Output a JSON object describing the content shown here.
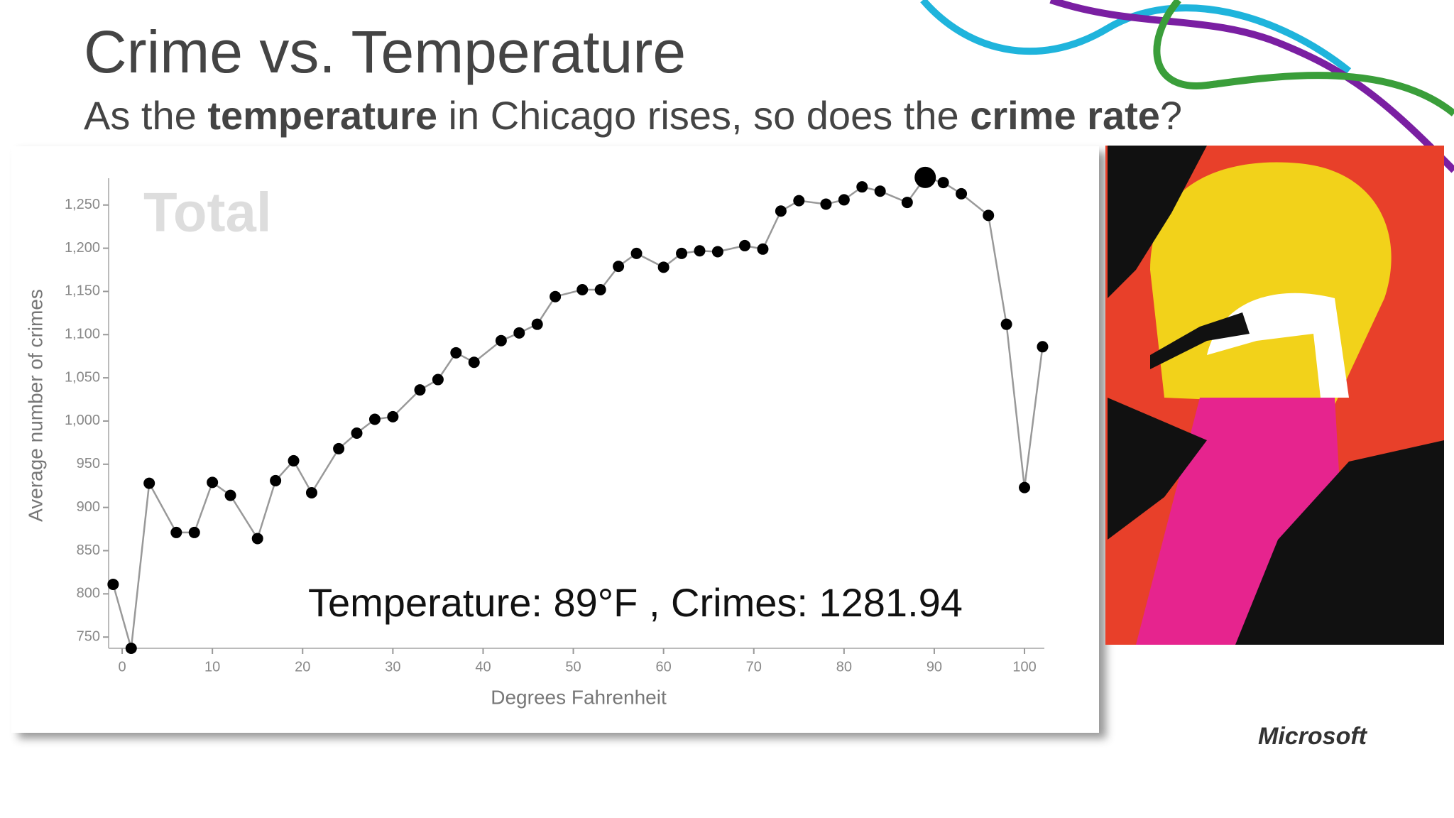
{
  "slide": {
    "title": "Crime vs. Temperature",
    "subtitle": [
      {
        "text": "As the ",
        "bold": false
      },
      {
        "text": "temperature",
        "bold": true
      },
      {
        "text": " in Chicago rises, so does the ",
        "bold": false
      },
      {
        "text": "crime rate",
        "bold": true
      },
      {
        "text": "?",
        "bold": false
      }
    ],
    "logo": "Microsoft"
  },
  "chart_data": {
    "type": "line",
    "watermark": "Total",
    "annotation": "Temperature: 89°F , Crimes: 1281.94",
    "x_label": "Degrees Fahrenheit",
    "y_label": "Average number of crimes",
    "x": [
      -1,
      1,
      3,
      6,
      8,
      10,
      12,
      15,
      17,
      19,
      21,
      24,
      26,
      28,
      30,
      33,
      35,
      37,
      39,
      42,
      44,
      46,
      48,
      51,
      53,
      55,
      57,
      60,
      62,
      64,
      66,
      69,
      71,
      73,
      75,
      78,
      80,
      82,
      84,
      87,
      89,
      91,
      93,
      96,
      98,
      100,
      102
    ],
    "values": [
      811,
      737,
      928,
      871,
      871,
      929,
      914,
      864,
      931,
      954,
      917,
      968,
      986,
      1002,
      1005,
      1036,
      1048,
      1079,
      1068,
      1093,
      1102,
      1112,
      1144,
      1152,
      1152,
      1179,
      1194,
      1178,
      1194,
      1197,
      1196,
      1203,
      1199,
      1243,
      1255,
      1251,
      1256,
      1271,
      1266,
      1253,
      1281.94,
      1276,
      1263,
      1238,
      1112,
      923,
      1086
    ],
    "highlight_index": 40,
    "color": "#000000",
    "line_color": "#999999",
    "xlim": [
      -1.5,
      102.2
    ],
    "xticks": [
      0,
      10,
      20,
      30,
      40,
      50,
      60,
      70,
      80,
      90,
      100
    ],
    "ylim": [
      737,
      1281
    ],
    "yticks": [
      750,
      800,
      850,
      900,
      950,
      {
        "value": 1000,
        "label": "1,000"
      },
      {
        "value": 1050,
        "label": "1,050"
      },
      {
        "value": 1100,
        "label": "1,100"
      },
      {
        "value": 1150,
        "label": "1,150"
      },
      {
        "value": 1200,
        "label": "1,200"
      },
      {
        "value": 1250,
        "label": "1,250"
      }
    ]
  }
}
